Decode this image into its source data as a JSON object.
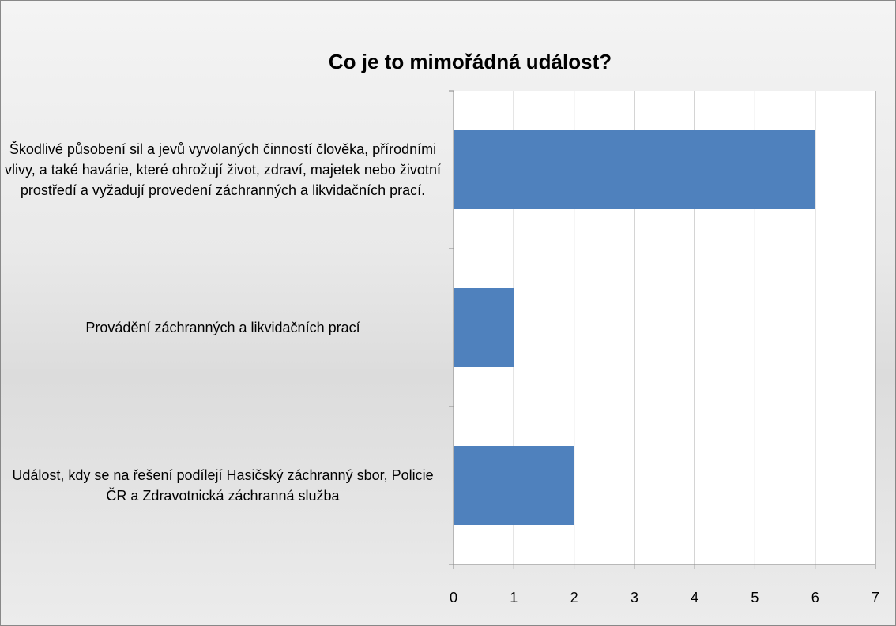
{
  "chart_data": {
    "type": "barh",
    "title": "Co je to mimořádná událost?",
    "categories": [
      "Škodlivé působení sil a jevů vyvolaných činností člověka, přírodními vlivy, a také havárie, které ohrožují život, zdraví, majetek nebo životní prostředí a vyžadují provedení záchranných a likvidačních prací.",
      "Provádění záchranných a likvidačních prací",
      "Událost, kdy se na řešení podílejí Hasičský záchranný sbor, Policie ČR a Zdravotnická záchranná služba"
    ],
    "values": [
      6,
      1,
      2
    ],
    "color": "#4f81bd",
    "xlim": [
      0,
      7
    ],
    "xticks": [
      0,
      1,
      2,
      3,
      4,
      5,
      6,
      7
    ],
    "grid": true
  }
}
